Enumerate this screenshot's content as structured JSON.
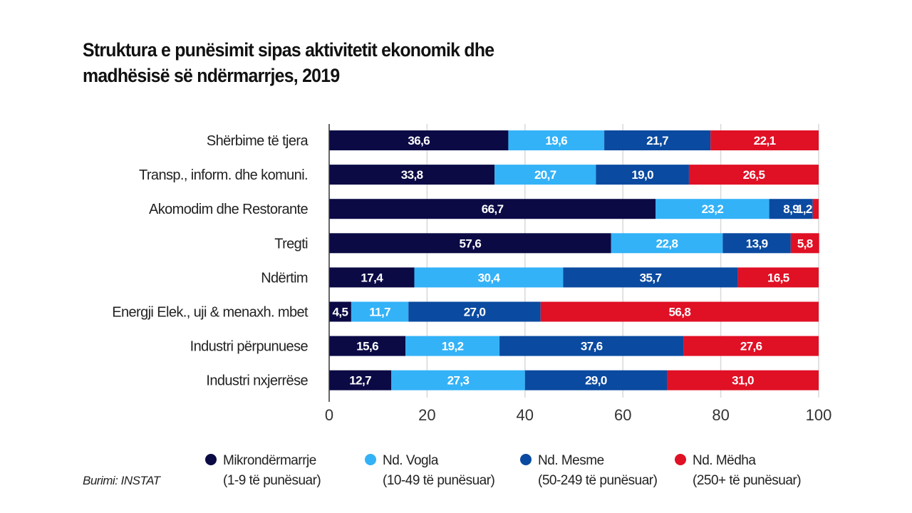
{
  "chart_data": {
    "type": "bar",
    "orientation": "horizontal",
    "stacked": true,
    "title": "Struktura e punësimit sipas aktivitetit ekonomik dhe madhësisë së ndërmarrjes, 2019",
    "title_lines": [
      "Struktura e punësimit sipas aktivitetit ekonomik dhe",
      "madhësisë së ndërmarrjes, 2019"
    ],
    "categories": [
      "Shërbime të tjera",
      "Transp., inform. dhe komuni.",
      "Akomodim dhe Restorante",
      "Tregti",
      "Ndërtim",
      "Energji Elek., uji & menaxh. mbet",
      "Industri përpunuese",
      "Industri nxjerrëse"
    ],
    "series": [
      {
        "name": "Mikrondërmarrje",
        "sublabel": "(1-9 të punësuar)",
        "color": "#0b0a45",
        "values": [
          36.6,
          33.8,
          66.7,
          57.6,
          17.4,
          4.5,
          15.6,
          12.7
        ],
        "labels": [
          "36,6",
          "33,8",
          "66,7",
          "57,6",
          "17,4",
          "4,5",
          "15,6",
          "12,7"
        ]
      },
      {
        "name": "Nd. Vogla",
        "sublabel": "(10-49 të punësuar)",
        "color": "#33b2f7",
        "values": [
          19.6,
          20.7,
          23.2,
          22.8,
          30.4,
          11.7,
          19.2,
          27.3
        ],
        "labels": [
          "19,6",
          "20,7",
          "23,2",
          "22,8",
          "30,4",
          "11,7",
          "19,2",
          "27,3"
        ]
      },
      {
        "name": "Nd. Mesme",
        "sublabel": "(50-249 të punësuar)",
        "color": "#0a4aa0",
        "values": [
          21.7,
          19.0,
          8.9,
          13.9,
          35.7,
          27.0,
          37.6,
          29.0
        ],
        "labels": [
          "21,7",
          "19,0",
          "8,9",
          "13,9",
          "35,7",
          "27,0",
          "37,6",
          "29,0"
        ]
      },
      {
        "name": "Nd. Mëdha",
        "sublabel": "(250+ të punësuar)",
        "color": "#e01025",
        "values": [
          22.1,
          26.5,
          1.2,
          5.8,
          16.5,
          56.8,
          27.6,
          31.0
        ],
        "labels": [
          "22,1",
          "26,5",
          "1,2",
          "5,8",
          "16,5",
          "56,8",
          "27,6",
          "31,0"
        ]
      }
    ],
    "xlim": [
      0,
      100
    ],
    "xticks": [
      "0",
      "20",
      "40",
      "60",
      "80",
      "100"
    ],
    "grid": true,
    "legend_position": "bottom",
    "source": "Burimi: INSTAT"
  }
}
